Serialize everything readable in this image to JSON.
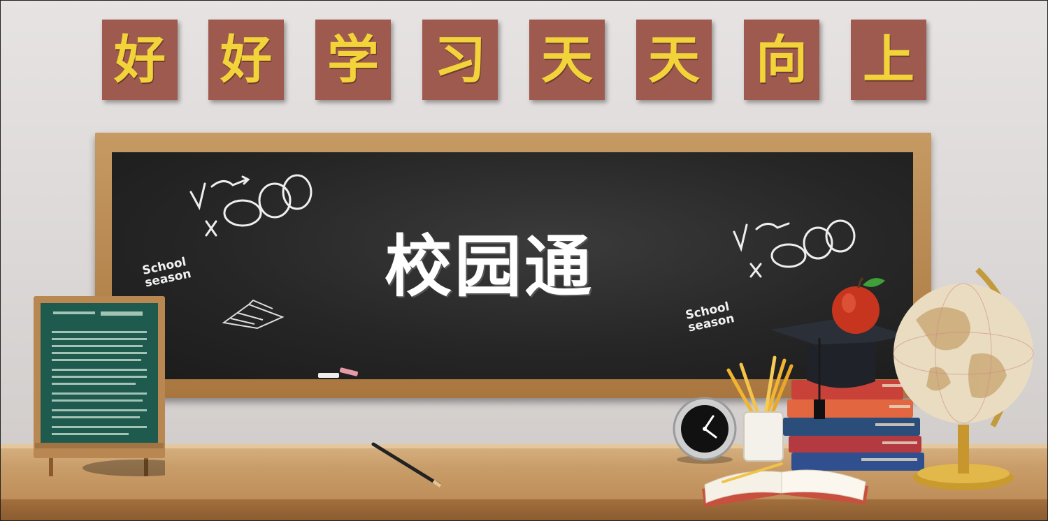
{
  "slogan": {
    "chars": [
      "好",
      "好",
      "学",
      "习",
      "天",
      "天",
      "向",
      "上"
    ]
  },
  "blackboard": {
    "title": "校园通",
    "chalk_labels": [
      {
        "line1": "School",
        "line2": "season"
      },
      {
        "line1": "School",
        "line2": "season"
      }
    ]
  },
  "colors": {
    "tile_bg": "#9e5a4e",
    "tile_text": "#f2d43a",
    "board": "#262626",
    "frame_wood": "#b78049"
  },
  "icons": {
    "apple": "apple-icon",
    "globe": "globe-icon",
    "clock": "clock-icon",
    "books": "books-icon",
    "pencils": "pencil-cup-icon",
    "mortarboard": "graduation-cap-icon",
    "open_book": "open-book-icon",
    "easel": "easel-board-icon"
  }
}
